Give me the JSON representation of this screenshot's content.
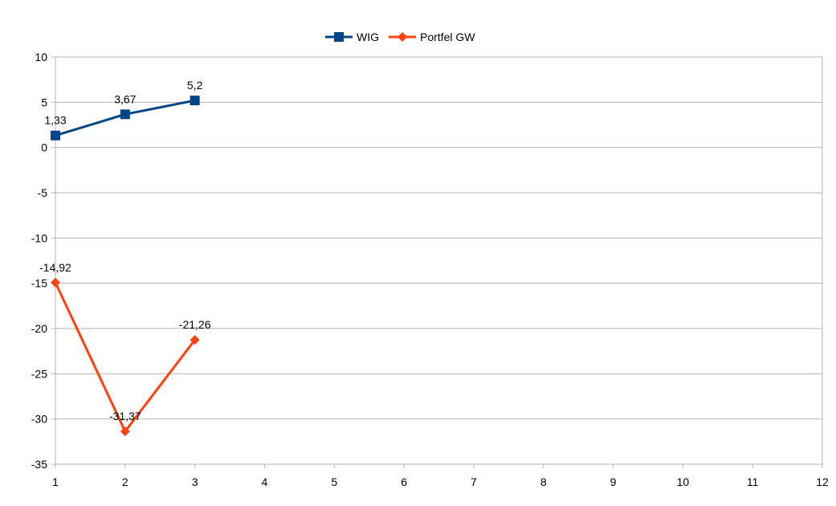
{
  "chart_data": {
    "type": "line",
    "x": [
      1,
      2,
      3
    ],
    "xlim": [
      1,
      12
    ],
    "ylim": [
      -35,
      10
    ],
    "x_ticks": [
      "1",
      "2",
      "3",
      "4",
      "5",
      "6",
      "7",
      "8",
      "9",
      "10",
      "11",
      "12"
    ],
    "y_ticks": [
      "10",
      "5",
      "0",
      "-5",
      "-10",
      "-15",
      "-20",
      "-25",
      "-30",
      "-35"
    ],
    "y_tick_values": [
      10,
      5,
      0,
      -5,
      -10,
      -15,
      -20,
      -25,
      -30,
      -35
    ],
    "grid": true,
    "legend_position": "top-center",
    "series": [
      {
        "name": "WIG",
        "values": [
          1.33,
          3.67,
          5.2
        ],
        "labels": [
          "1,33",
          "3,67",
          "5,2"
        ],
        "color": "#004586",
        "marker": "square"
      },
      {
        "name": "Portfel GW",
        "values": [
          -14.92,
          -31.37,
          -21.26
        ],
        "labels": [
          "-14,92",
          "-31,37",
          "-21,26"
        ],
        "color": "#ff420e",
        "marker": "diamond"
      }
    ]
  }
}
